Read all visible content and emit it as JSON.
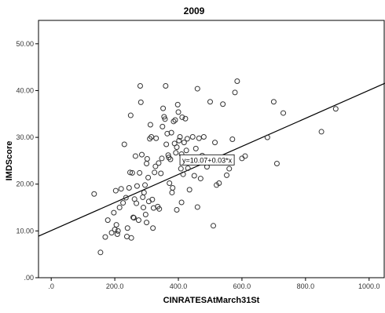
{
  "chart_data": {
    "type": "scatter",
    "title": "2009",
    "xlabel": "CINRATESAtMarch31St",
    "ylabel": "IMDScore",
    "xlim": [
      -40,
      1050
    ],
    "ylim": [
      0,
      55
    ],
    "xticks": [
      0,
      200,
      400,
      600,
      800,
      1000
    ],
    "xtick_labels": [
      ".0",
      "200.0",
      "400.0",
      "600.0",
      "800.0",
      "1000.0"
    ],
    "yticks": [
      0,
      10,
      20,
      30,
      40,
      50
    ],
    "ytick_labels": [
      ".00",
      "10.00",
      "20.00",
      "30.00",
      "40.00",
      "50.00"
    ],
    "grid": false,
    "fit_line": {
      "intercept": 10.07,
      "slope": 0.03,
      "label": "y=10.07+0.03*x",
      "label_anchor": [
        405,
        25.1
      ]
    },
    "colors": {
      "marker": "#333333",
      "line": "#000000",
      "axis": "#000000"
    },
    "points": [
      [
        135,
        17.9
      ],
      [
        155,
        5.4
      ],
      [
        170,
        8.7
      ],
      [
        178,
        12.3
      ],
      [
        190,
        9.6
      ],
      [
        197,
        13.9
      ],
      [
        200,
        10.3
      ],
      [
        203,
        18.6
      ],
      [
        205,
        11.3
      ],
      [
        208,
        9.3
      ],
      [
        210,
        10.0
      ],
      [
        215,
        15.0
      ],
      [
        220,
        19.0
      ],
      [
        226,
        16.0
      ],
      [
        230,
        28.5
      ],
      [
        235,
        17.1
      ],
      [
        238,
        8.8
      ],
      [
        240,
        10.6
      ],
      [
        245,
        19.2
      ],
      [
        248,
        22.5
      ],
      [
        250,
        34.7
      ],
      [
        252,
        8.5
      ],
      [
        255,
        22.4
      ],
      [
        258,
        12.9
      ],
      [
        262,
        16.8
      ],
      [
        265,
        26.0
      ],
      [
        268,
        15.9
      ],
      [
        270,
        19.6
      ],
      [
        275,
        12.3
      ],
      [
        278,
        22.4
      ],
      [
        280,
        41.0
      ],
      [
        282,
        37.5
      ],
      [
        285,
        26.3
      ],
      [
        288,
        17.2
      ],
      [
        290,
        15.0
      ],
      [
        292,
        18.2
      ],
      [
        295,
        19.8
      ],
      [
        297,
        13.5
      ],
      [
        300,
        24.4
      ],
      [
        302,
        25.4
      ],
      [
        305,
        21.4
      ],
      [
        307,
        16.3
      ],
      [
        310,
        29.7
      ],
      [
        312,
        32.7
      ],
      [
        315,
        30.1
      ],
      [
        318,
        16.7
      ],
      [
        320,
        10.6
      ],
      [
        322,
        14.9
      ],
      [
        325,
        22.5
      ],
      [
        328,
        23.8
      ],
      [
        330,
        29.8
      ],
      [
        335,
        15.2
      ],
      [
        338,
        24.5
      ],
      [
        340,
        14.7
      ],
      [
        345,
        22.3
      ],
      [
        348,
        25.5
      ],
      [
        350,
        32.3
      ],
      [
        352,
        36.2
      ],
      [
        355,
        34.4
      ],
      [
        358,
        33.9
      ],
      [
        360,
        41.0
      ],
      [
        362,
        28.5
      ],
      [
        365,
        30.8
      ],
      [
        368,
        26.2
      ],
      [
        370,
        25.7
      ],
      [
        372,
        20.2
      ],
      [
        375,
        25.3
      ],
      [
        378,
        31.0
      ],
      [
        380,
        18.2
      ],
      [
        382,
        19.2
      ],
      [
        385,
        33.4
      ],
      [
        388,
        28.7
      ],
      [
        390,
        33.7
      ],
      [
        392,
        26.7
      ],
      [
        395,
        27.9
      ],
      [
        398,
        37.0
      ],
      [
        400,
        35.4
      ],
      [
        402,
        29.3
      ],
      [
        405,
        30.1
      ],
      [
        408,
        23.3
      ],
      [
        410,
        26.4
      ],
      [
        412,
        34.3
      ],
      [
        415,
        22.1
      ],
      [
        418,
        28.9
      ],
      [
        420,
        24.7
      ],
      [
        422,
        34.0
      ],
      [
        425,
        27.2
      ],
      [
        428,
        29.7
      ],
      [
        430,
        23.4
      ],
      [
        435,
        18.8
      ],
      [
        440,
        25.2
      ],
      [
        445,
        30.1
      ],
      [
        450,
        21.8
      ],
      [
        455,
        27.6
      ],
      [
        460,
        40.4
      ],
      [
        465,
        29.8
      ],
      [
        470,
        21.2
      ],
      [
        475,
        26.1
      ],
      [
        480,
        30.1
      ],
      [
        490,
        23.7
      ],
      [
        500,
        37.6
      ],
      [
        510,
        11.1
      ],
      [
        515,
        28.9
      ],
      [
        520,
        19.8
      ],
      [
        528,
        20.2
      ],
      [
        540,
        37.1
      ],
      [
        552,
        21.9
      ],
      [
        560,
        23.3
      ],
      [
        570,
        29.6
      ],
      [
        578,
        39.6
      ],
      [
        585,
        42.0
      ],
      [
        600,
        25.5
      ],
      [
        610,
        26.0
      ],
      [
        680,
        30.0
      ],
      [
        700,
        37.6
      ],
      [
        710,
        24.4
      ],
      [
        730,
        35.2
      ],
      [
        850,
        31.2
      ],
      [
        895,
        36.1
      ],
      [
        460,
        15.1
      ],
      [
        395,
        14.5
      ],
      [
        300,
        11.8
      ],
      [
        260,
        12.8
      ],
      [
        410,
        16.1
      ]
    ]
  }
}
